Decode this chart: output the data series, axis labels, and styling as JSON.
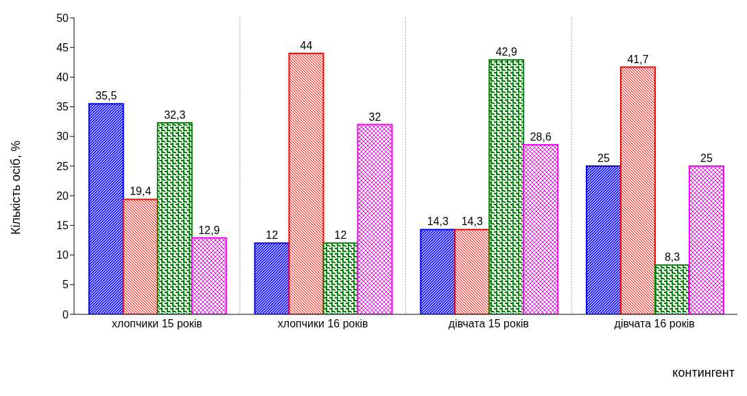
{
  "chart_data": {
    "type": "bar",
    "ylabel": "Кількість осіб, %",
    "xlabel": "контингент",
    "categories": [
      "хлопчики 15 років",
      "хлопчики 16 років",
      "дівчата 15 років",
      "дівчата 16 років"
    ],
    "series": [
      {
        "color": "#0000ff",
        "values": [
          35.5,
          12,
          14.3,
          25
        ],
        "value_labels": [
          "35,5",
          "12",
          "14,3",
          "25"
        ]
      },
      {
        "color": "#ff0000",
        "values": [
          19.4,
          44,
          14.3,
          41.7
        ],
        "value_labels": [
          "19,4",
          "44",
          "14,3",
          "41,7"
        ]
      },
      {
        "color": "#008000",
        "values": [
          32.3,
          12,
          42.9,
          8.3
        ],
        "value_labels": [
          "32,3",
          "12",
          "42,9",
          "8,3"
        ]
      },
      {
        "color": "#ff00ff",
        "values": [
          12.9,
          32,
          28.6,
          25
        ],
        "value_labels": [
          "12,9",
          "32",
          "28,6",
          "25"
        ]
      }
    ],
    "ylim": [
      0,
      50
    ],
    "yticks": [
      0,
      5,
      10,
      15,
      20,
      25,
      30,
      35,
      40,
      45,
      50
    ],
    "grid": "x",
    "legend": false
  }
}
